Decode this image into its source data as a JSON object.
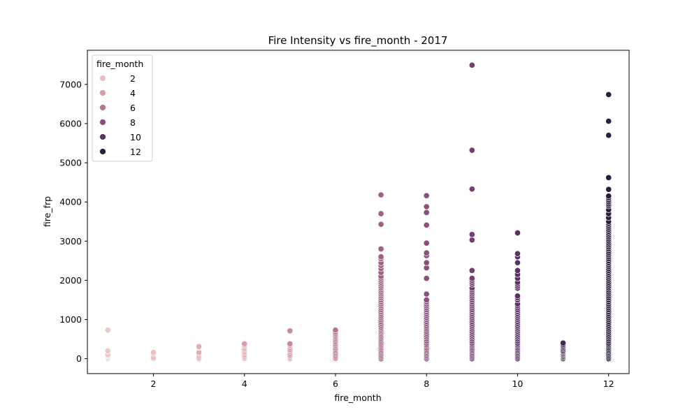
{
  "chart_data": {
    "type": "scatter",
    "title": "Fire Intensity vs fire_month - 2017",
    "xlabel": "fire_month",
    "ylabel": "fire_frp",
    "xlim": [
      0.55,
      12.45
    ],
    "ylim": [
      -380,
      7870
    ],
    "x_ticks": [
      2,
      4,
      6,
      8,
      10,
      12
    ],
    "y_ticks": [
      0,
      1000,
      2000,
      3000,
      4000,
      5000,
      6000,
      7000
    ],
    "grid": false,
    "legend": {
      "title": "fire_month",
      "placement": "top-left",
      "entries": [
        {
          "label": "2",
          "color": "#e9c1bd"
        },
        {
          "label": "4",
          "color": "#d79fa5"
        },
        {
          "label": "6",
          "color": "#b5738d"
        },
        {
          "label": "8",
          "color": "#8b4e7d"
        },
        {
          "label": "10",
          "color": "#5a3263"
        },
        {
          "label": "12",
          "color": "#2c1e3d"
        }
      ]
    },
    "month_colors": {
      "1": "#ecc8c2",
      "2": "#e9c1bd",
      "3": "#e1b1b1",
      "4": "#d79fa5",
      "5": "#c88a99",
      "6": "#b5738d",
      "7": "#a05f86",
      "8": "#8b4e7d",
      "9": "#723f70",
      "10": "#5a3263",
      "11": "#43284f",
      "12": "#2c1e3d"
    },
    "series": [
      {
        "x": 1,
        "y": [
          0,
          20,
          50,
          80,
          100,
          200,
          730
        ]
      },
      {
        "x": 2,
        "y": [
          0,
          20,
          130,
          160
        ]
      },
      {
        "x": 3,
        "y": [
          0,
          30,
          80,
          130,
          160,
          290,
          310
        ]
      },
      {
        "x": 4,
        "y": [
          0,
          20,
          50,
          80,
          110,
          150,
          180,
          220,
          250,
          280,
          320,
          350,
          380
        ]
      },
      {
        "x": 5,
        "y": [
          0,
          20,
          50,
          70,
          100,
          140,
          180,
          210,
          240,
          280,
          320,
          350,
          380,
          710
        ]
      },
      {
        "x": 6,
        "y": [
          10,
          40,
          80,
          120,
          160,
          200,
          240,
          280,
          320,
          360,
          400,
          440,
          480,
          520,
          560,
          600,
          640,
          680,
          730
        ]
      },
      {
        "x": 7,
        "y": [
          0,
          40,
          80,
          120,
          160,
          200,
          240,
          280,
          320,
          360,
          400,
          440,
          480,
          520,
          560,
          600,
          640,
          680,
          720,
          760,
          800,
          850,
          900,
          950,
          1000,
          1050,
          1100,
          1150,
          1200,
          1250,
          1300,
          1350,
          1400,
          1450,
          1500,
          1550,
          1600,
          1650,
          1700,
          1750,
          1800,
          1850,
          1900,
          1950,
          2000,
          2050,
          2100,
          2200,
          2300,
          2380,
          2450,
          2550,
          2600,
          2800,
          3430,
          3700,
          4180
        ]
      },
      {
        "x": 8,
        "y": [
          0,
          40,
          80,
          120,
          160,
          200,
          240,
          280,
          320,
          360,
          400,
          450,
          500,
          550,
          600,
          650,
          700,
          750,
          800,
          850,
          900,
          950,
          1000,
          1050,
          1100,
          1150,
          1200,
          1250,
          1300,
          1350,
          1400,
          1450,
          1500,
          1650,
          2050,
          2320,
          2450,
          2630,
          2700,
          2950,
          3410,
          3730,
          3880,
          4160
        ]
      },
      {
        "x": 9,
        "y": [
          0,
          40,
          80,
          120,
          160,
          200,
          240,
          280,
          320,
          360,
          400,
          450,
          500,
          550,
          600,
          650,
          700,
          750,
          800,
          850,
          900,
          950,
          1000,
          1050,
          1100,
          1150,
          1200,
          1250,
          1300,
          1350,
          1400,
          1450,
          1500,
          1550,
          1600,
          1650,
          1700,
          1750,
          1800,
          1900,
          1950,
          2000,
          2050,
          2250,
          3030,
          3170,
          4330,
          5320,
          7490
        ]
      },
      {
        "x": 10,
        "y": [
          0,
          40,
          80,
          120,
          160,
          200,
          240,
          280,
          320,
          360,
          400,
          450,
          500,
          550,
          600,
          650,
          700,
          750,
          800,
          850,
          900,
          950,
          1000,
          1050,
          1100,
          1150,
          1200,
          1250,
          1300,
          1350,
          1400,
          1500,
          1550,
          1600,
          1800,
          1850,
          1900,
          1950,
          2050,
          2150,
          2250,
          2450,
          2600,
          2680,
          3210
        ]
      },
      {
        "x": 11,
        "y": [
          0,
          30,
          60,
          90,
          120,
          150,
          180,
          210,
          250,
          290,
          320,
          360,
          400
        ]
      },
      {
        "x": 12,
        "y": [
          0,
          40,
          80,
          120,
          160,
          200,
          240,
          280,
          320,
          360,
          400,
          450,
          500,
          550,
          600,
          650,
          700,
          750,
          800,
          850,
          900,
          950,
          1000,
          1050,
          1100,
          1150,
          1200,
          1250,
          1300,
          1350,
          1400,
          1450,
          1500,
          1550,
          1600,
          1650,
          1700,
          1750,
          1800,
          1850,
          1900,
          1950,
          2000,
          2050,
          2100,
          2150,
          2200,
          2250,
          2300,
          2350,
          2400,
          2450,
          2500,
          2550,
          2600,
          2650,
          2700,
          2750,
          2800,
          2850,
          2900,
          2950,
          3000,
          3050,
          3100,
          3150,
          3200,
          3250,
          3300,
          3350,
          3400,
          3450,
          3500,
          3600,
          3700,
          3800,
          3900,
          3950,
          4000,
          4050,
          4100,
          4150,
          4320,
          4620,
          5700,
          6060,
          6740
        ]
      }
    ]
  }
}
